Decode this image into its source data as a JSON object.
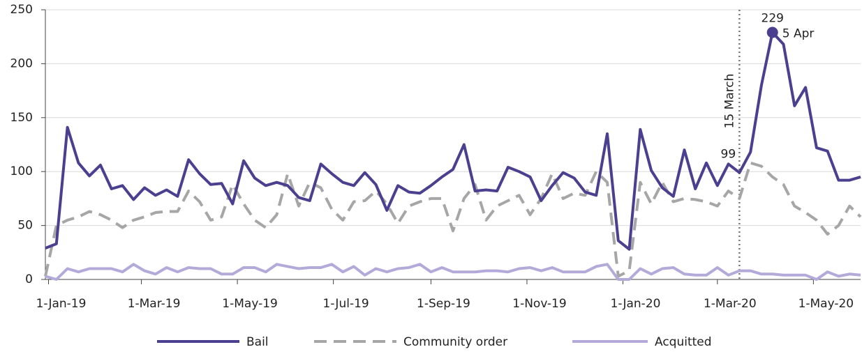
{
  "chart_data": {
    "type": "line",
    "x": [
      "2018-12-30",
      "2019-01-06",
      "2019-01-13",
      "2019-01-20",
      "2019-01-27",
      "2019-02-03",
      "2019-02-10",
      "2019-02-17",
      "2019-02-24",
      "2019-03-03",
      "2019-03-10",
      "2019-03-17",
      "2019-03-24",
      "2019-03-31",
      "2019-04-07",
      "2019-04-14",
      "2019-04-21",
      "2019-04-28",
      "2019-05-05",
      "2019-05-12",
      "2019-05-19",
      "2019-05-26",
      "2019-06-02",
      "2019-06-09",
      "2019-06-16",
      "2019-06-23",
      "2019-06-30",
      "2019-07-07",
      "2019-07-14",
      "2019-07-21",
      "2019-07-28",
      "2019-08-04",
      "2019-08-11",
      "2019-08-18",
      "2019-08-25",
      "2019-09-01",
      "2019-09-08",
      "2019-09-15",
      "2019-09-22",
      "2019-09-29",
      "2019-10-06",
      "2019-10-13",
      "2019-10-20",
      "2019-10-27",
      "2019-11-03",
      "2019-11-10",
      "2019-11-17",
      "2019-11-24",
      "2019-12-01",
      "2019-12-08",
      "2019-12-15",
      "2019-12-22",
      "2019-12-29",
      "2020-01-05",
      "2020-01-12",
      "2020-01-19",
      "2020-01-26",
      "2020-02-02",
      "2020-02-09",
      "2020-02-16",
      "2020-02-23",
      "2020-03-01",
      "2020-03-08",
      "2020-03-15",
      "2020-03-22",
      "2020-03-29",
      "2020-04-05",
      "2020-04-12",
      "2020-04-19",
      "2020-04-26",
      "2020-05-03",
      "2020-05-10",
      "2020-05-17",
      "2020-05-24",
      "2020-05-31"
    ],
    "series": [
      {
        "name": "Bail",
        "color": "#4b3f8f",
        "style": "solid",
        "values": [
          29,
          33,
          141,
          108,
          96,
          106,
          84,
          87,
          74,
          85,
          78,
          83,
          77,
          111,
          98,
          88,
          89,
          70,
          110,
          94,
          87,
          90,
          87,
          76,
          73,
          107,
          98,
          90,
          87,
          99,
          88,
          64,
          87,
          81,
          80,
          87,
          95,
          102,
          125,
          82,
          83,
          82,
          104,
          100,
          95,
          73,
          87,
          99,
          94,
          81,
          78,
          135,
          36,
          28,
          139,
          101,
          85,
          77,
          120,
          84,
          108,
          87,
          107,
          99,
          118,
          180,
          229,
          218,
          161,
          178,
          122,
          119,
          92,
          92,
          95
        ],
        "value_labels": [
          null,
          null,
          null,
          null,
          null,
          null,
          null,
          null,
          null,
          null,
          null,
          null,
          null,
          null,
          null,
          null,
          null,
          null,
          null,
          null,
          null,
          null,
          null,
          null,
          null,
          null,
          null,
          null,
          null,
          null,
          null,
          null,
          null,
          null,
          null,
          null,
          null,
          null,
          null,
          null,
          null,
          null,
          null,
          null,
          null,
          null,
          null,
          null,
          null,
          null,
          null,
          null,
          null,
          null,
          null,
          null,
          null,
          null,
          null,
          null,
          null,
          null,
          null,
          "99",
          null,
          null,
          "229",
          null,
          null,
          null,
          null,
          null,
          null,
          null,
          null
        ]
      },
      {
        "name": "Community order",
        "color": "#a6a6a6",
        "style": "dashed",
        "values": [
          3,
          50,
          55,
          58,
          63,
          60,
          55,
          48,
          55,
          58,
          62,
          63,
          63,
          82,
          72,
          55,
          58,
          88,
          70,
          55,
          48,
          60,
          98,
          68,
          90,
          85,
          65,
          55,
          72,
          73,
          82,
          70,
          52,
          68,
          72,
          75,
          75,
          45,
          75,
          88,
          55,
          68,
          73,
          78,
          60,
          75,
          98,
          75,
          80,
          78,
          100,
          90,
          3,
          8,
          90,
          70,
          90,
          72,
          75,
          74,
          72,
          68,
          82,
          75,
          108,
          105,
          95,
          88,
          68,
          62,
          55,
          42,
          50,
          68,
          58
        ]
      },
      {
        "name": "Acquitted",
        "color": "#b3aad9",
        "style": "solid",
        "values": [
          3,
          0,
          10,
          7,
          10,
          10,
          10,
          7,
          14,
          8,
          5,
          11,
          7,
          11,
          10,
          10,
          5,
          5,
          11,
          11,
          7,
          14,
          12,
          10,
          11,
          11,
          14,
          7,
          12,
          4,
          10,
          7,
          10,
          11,
          14,
          7,
          11,
          7,
          7,
          7,
          8,
          8,
          7,
          10,
          11,
          8,
          11,
          7,
          7,
          7,
          12,
          14,
          0,
          0,
          10,
          5,
          10,
          11,
          5,
          4,
          4,
          11,
          4,
          8,
          8,
          5,
          5,
          4,
          4,
          4,
          0,
          7,
          3,
          5,
          4
        ]
      }
    ],
    "xlim": [
      "2018-12-30",
      "2020-05-31"
    ],
    "xticks": [
      {
        "value": "2019-01-01",
        "label": "1-Jan-19"
      },
      {
        "value": "2019-03-01",
        "label": "1-Mar-19"
      },
      {
        "value": "2019-05-01",
        "label": "1-May-19"
      },
      {
        "value": "2019-07-01",
        "label": "1-Jul-19"
      },
      {
        "value": "2019-09-01",
        "label": "1-Sep-19"
      },
      {
        "value": "2019-11-01",
        "label": "1-Nov-19"
      },
      {
        "value": "2020-01-01",
        "label": "1-Jan-20"
      },
      {
        "value": "2020-03-01",
        "label": "1-Mar-20"
      },
      {
        "value": "2020-05-01",
        "label": "1-May-20"
      }
    ],
    "ylim": [
      0,
      250
    ],
    "yticks": [
      0,
      50,
      100,
      150,
      200,
      250
    ],
    "grid": true,
    "legend": "bottom",
    "vline": {
      "x": "2020-03-15",
      "label": "15 March"
    },
    "annotations": [
      {
        "x": "2020-04-05",
        "y": 229,
        "text": "5 Apr"
      }
    ]
  }
}
